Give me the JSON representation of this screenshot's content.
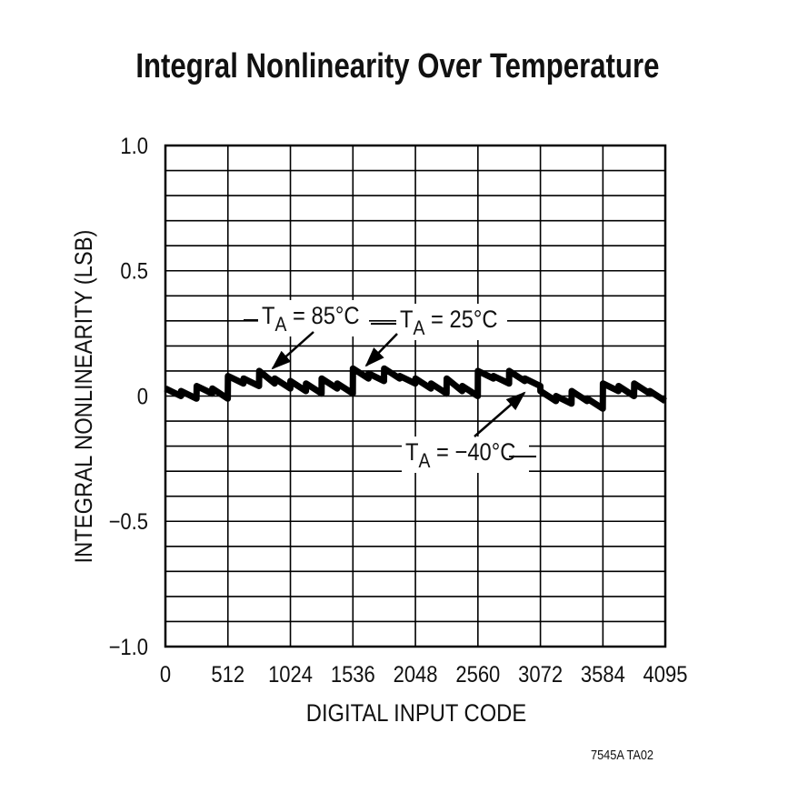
{
  "chart_data": {
    "type": "line",
    "title": "Integral Nonlinearity Over Temperature",
    "xlabel": "DIGITAL INPUT CODE",
    "ylabel": "INTEGRAL NONLINEARITY (LSB)",
    "xlim": [
      0,
      4095
    ],
    "ylim": [
      -1.0,
      1.0
    ],
    "x_ticks": [
      0,
      512,
      1024,
      1536,
      2048,
      2560,
      3072,
      3584,
      4095
    ],
    "x_tick_labels": [
      "0",
      "512",
      "1024",
      "1536",
      "2048",
      "2560",
      "3072",
      "3584",
      "4095"
    ],
    "y_ticks": [
      1.0,
      0.5,
      0,
      -0.5,
      -1.0
    ],
    "y_tick_labels": [
      "1.0",
      "0.5",
      "0",
      "−0.5",
      "−1.0"
    ],
    "grid": true,
    "grid_y_step": 0.1,
    "grid_x_step": 512,
    "series": [
      {
        "x": [
          0,
          127,
          128,
          255,
          256,
          383,
          384,
          511,
          512,
          639,
          640,
          767,
          768,
          895,
          896,
          1023,
          1024,
          1151,
          1152,
          1279,
          1280,
          1407,
          1408,
          1535,
          1536,
          1663,
          1664,
          1791,
          1792,
          1919,
          1920,
          2047,
          2048,
          2175,
          2176,
          2303,
          2304,
          2431,
          2432,
          2559,
          2560,
          2687,
          2688,
          2815,
          2816,
          2943,
          2944,
          3071,
          3072,
          3199,
          3200,
          3327,
          3328,
          3455,
          3456,
          3583,
          3584,
          3711,
          3712,
          3839,
          3840,
          3967,
          3968,
          4095
        ],
        "y": [
          0.03,
          0.0,
          0.02,
          -0.01,
          0.04,
          0.01,
          0.03,
          -0.01,
          0.08,
          0.05,
          0.07,
          0.04,
          0.1,
          0.05,
          0.07,
          0.03,
          0.06,
          0.02,
          0.05,
          0.01,
          0.07,
          0.03,
          0.05,
          0.01,
          0.11,
          0.07,
          0.09,
          0.06,
          0.11,
          0.07,
          0.08,
          0.05,
          0.07,
          0.03,
          0.05,
          0.01,
          0.07,
          0.02,
          0.04,
          0.0,
          0.1,
          0.07,
          0.08,
          0.05,
          0.1,
          0.06,
          0.07,
          0.04,
          0.02,
          -0.02,
          0.0,
          -0.03,
          0.02,
          -0.02,
          -0.01,
          -0.05,
          0.05,
          0.02,
          0.04,
          0.0,
          0.05,
          0.01,
          0.02,
          -0.02
        ]
      }
    ],
    "annotations": [
      {
        "text_main": "T",
        "text_sub": "A",
        "text_rest": " = 85°C"
      },
      {
        "text_main": "T",
        "text_sub": "A",
        "text_rest": " = 25°C"
      },
      {
        "text_main": "T",
        "text_sub": "A",
        "text_rest": " = −40°C"
      }
    ],
    "color": "#000000"
  },
  "footer": "7545A TA02"
}
